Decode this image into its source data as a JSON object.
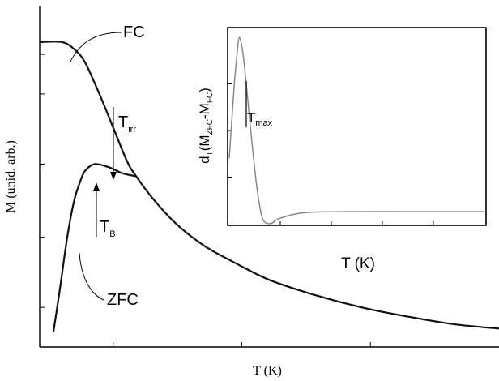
{
  "chart_data": [
    {
      "type": "line",
      "xlabel": "T (K)",
      "ylabel": "M (unid. arb.)",
      "series": [
        {
          "name": "FC",
          "x": [
            0.0,
            0.05,
            0.08,
            0.1,
            0.13,
            0.16,
            0.19,
            0.21,
            0.25,
            0.3,
            0.36,
            0.42,
            0.5,
            0.6,
            0.7,
            0.8,
            0.9,
            1.0
          ],
          "y": [
            1.0,
            1.0,
            0.97,
            0.93,
            0.83,
            0.72,
            0.61,
            0.56,
            0.48,
            0.4,
            0.33,
            0.28,
            0.22,
            0.17,
            0.13,
            0.1,
            0.075,
            0.06
          ]
        },
        {
          "name": "ZFC",
          "x": [
            0.03,
            0.045,
            0.06,
            0.075,
            0.09,
            0.1,
            0.12,
            0.15,
            0.18,
            0.21
          ],
          "y": [
            0.05,
            0.2,
            0.36,
            0.48,
            0.55,
            0.58,
            0.6,
            0.59,
            0.57,
            0.56
          ]
        }
      ],
      "annotations": [
        {
          "label": "FC"
        },
        {
          "label": "ZFC"
        },
        {
          "main": "T",
          "sub": "irr"
        },
        {
          "main": "T",
          "sub": "B"
        }
      ]
    },
    {
      "type": "line",
      "xlabel": "T (K)",
      "ylabel": {
        "a": "d",
        "b": "T",
        "c": "(M",
        "d": "ZFC",
        "e": "-M",
        "f": "FC",
        "g": ")"
      },
      "series": [
        {
          "x": [
            0.0,
            0.02,
            0.03,
            0.04,
            0.055,
            0.07,
            0.09,
            0.11,
            0.13,
            0.16,
            0.2,
            0.3,
            0.5,
            0.7,
            1.0
          ],
          "y": [
            0.35,
            0.75,
            0.9,
            1.0,
            0.9,
            0.7,
            0.42,
            0.18,
            0.03,
            0.0,
            0.03,
            0.06,
            0.065,
            0.065,
            0.065
          ]
        }
      ],
      "annotations": [
        {
          "main": "T",
          "sub": "max"
        }
      ]
    }
  ]
}
